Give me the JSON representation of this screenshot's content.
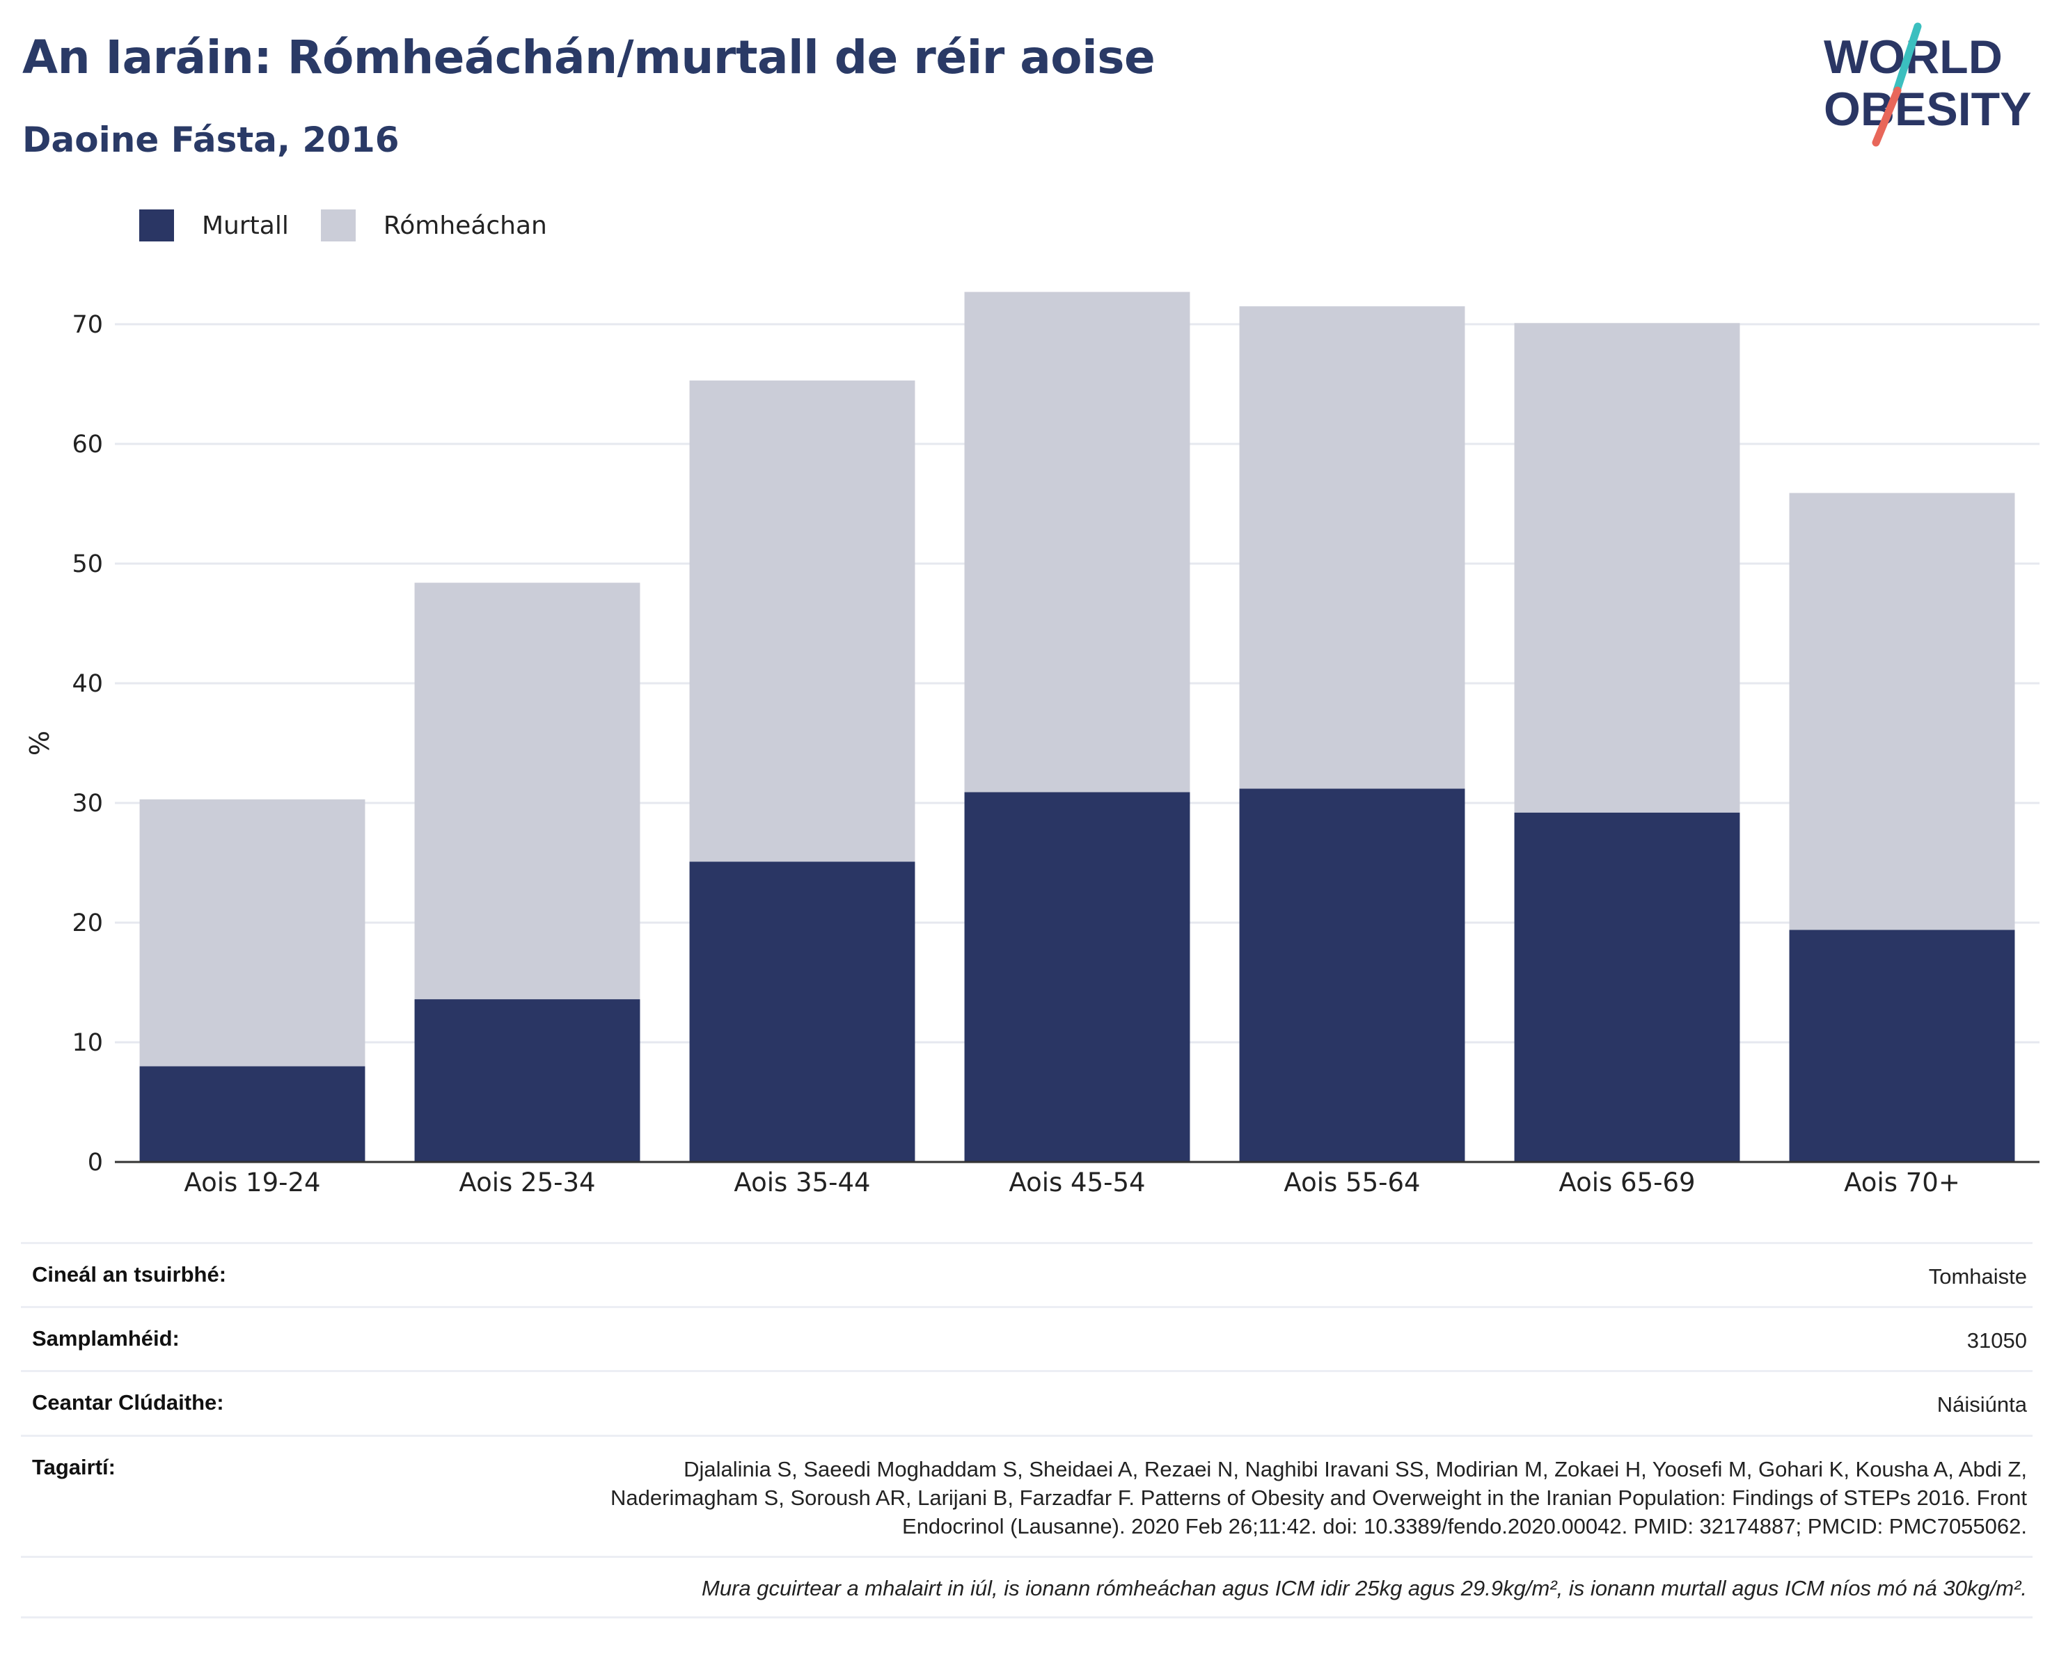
{
  "header": {
    "title": "An Iaráin: Rómheáchán/murtall de réir aoise",
    "subtitle": "Daoine Fásta, 2016"
  },
  "logo": {
    "line1": "WORLD",
    "line2": "OBESITY",
    "accent_colors": [
      "#3bbfbf",
      "#e8675a"
    ]
  },
  "colors": {
    "obesity": "#2a3664",
    "overweight": "#cbcdd8",
    "grid": "#e6e8ef",
    "text": "#222222"
  },
  "legend": [
    {
      "label": "Murtall",
      "color": "#2a3664"
    },
    {
      "label": "Rómheáchan",
      "color": "#cbcdd8"
    }
  ],
  "chart_data": {
    "type": "bar",
    "stacked": true,
    "categories": [
      "Aois 19-24",
      "Aois 25-34",
      "Aois 35-44",
      "Aois 45-54",
      "Aois 55-64",
      "Aois 65-69",
      "Aois 70+"
    ],
    "series": [
      {
        "name": "Murtall",
        "values": [
          8.0,
          13.6,
          25.1,
          30.9,
          31.2,
          29.2,
          19.4
        ]
      },
      {
        "name": "Rómheáchan",
        "values": [
          22.3,
          34.8,
          40.2,
          41.8,
          40.3,
          40.9,
          36.5
        ]
      }
    ],
    "ylabel": "%",
    "xlabel": "",
    "ylim": [
      0,
      75
    ],
    "yticks": [
      0,
      10,
      20,
      30,
      40,
      50,
      60,
      70
    ],
    "grid": true,
    "legend_position": "top-left"
  },
  "info": {
    "rows": [
      {
        "label": "Cineál an tsuirbhé:",
        "value": "Tomhaiste"
      },
      {
        "label": "Samplamhéid:",
        "value": "31050"
      },
      {
        "label": "Ceantar Clúdaithe:",
        "value": "Náisiúnta"
      },
      {
        "label": "Tagairtí:",
        "value": "Djalalinia S, Saeedi Moghaddam S, Sheidaei A, Rezaei N, Naghibi Iravani SS, Modirian M, Zokaei H, Yoosefi M, Gohari K, Kousha A, Abdi Z, Naderimagham S, Soroush AR, Larijani B, Farzadfar F. Patterns of Obesity and Overweight in the Iranian Population: Findings of STEPs 2016. Front Endocrinol (Lausanne). 2020 Feb 26;11:42. doi: 10.3389/fendo.2020.00042. PMID: 32174887; PMCID: PMC7055062."
      }
    ],
    "note": "Mura gcuirtear a mhalairt in iúl, is ionann rómheáchan agus ICM idir 25kg agus 29.9kg/m², is ionann murtall agus ICM níos mó ná 30kg/m²."
  }
}
